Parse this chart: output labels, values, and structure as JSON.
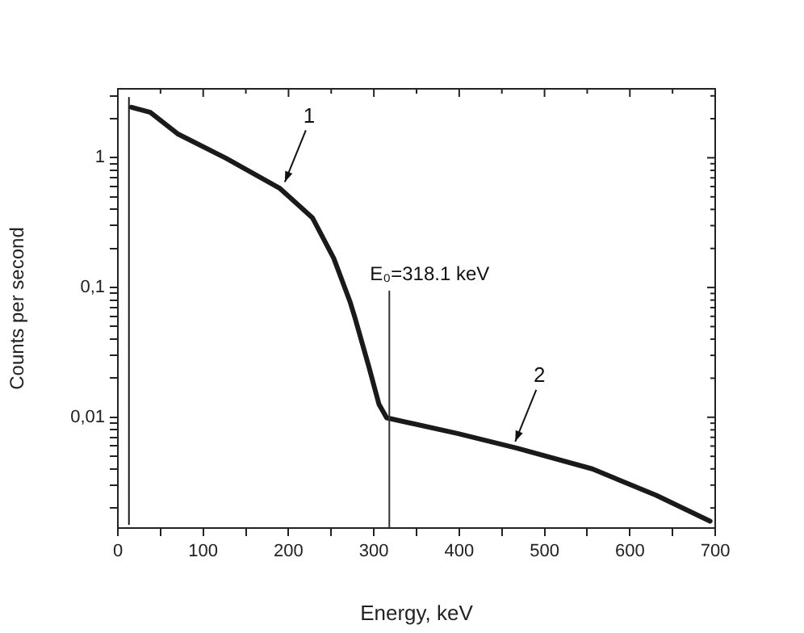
{
  "chart_data": {
    "type": "line",
    "xlabel": "Energy, keV",
    "ylabel": "Counts per second",
    "log": "y",
    "grid": false,
    "legend": false,
    "marker": "none",
    "line_style": "solid",
    "xlim": [
      0,
      700
    ],
    "ylim": [
      0.0014,
      3.4
    ],
    "xticks": [
      0,
      {
        "value": 50,
        "label": null
      },
      100,
      {
        "value": 150,
        "label": null
      },
      200,
      {
        "value": 250,
        "label": null
      },
      300,
      {
        "value": 350,
        "label": null
      },
      400,
      {
        "value": 450,
        "label": null
      },
      500,
      {
        "value": 550,
        "label": null
      },
      600,
      {
        "value": 650,
        "label": null
      },
      700
    ],
    "yticks": [
      {
        "value": 0.002,
        "label": null
      },
      {
        "value": 0.003,
        "label": null
      },
      {
        "value": 0.004,
        "label": null
      },
      {
        "value": 0.005,
        "label": null
      },
      {
        "value": 0.006,
        "label": null
      },
      {
        "value": 0.007,
        "label": null
      },
      {
        "value": 0.008,
        "label": null
      },
      {
        "value": 0.009,
        "label": null
      },
      {
        "value": 0.01,
        "label": "0,01"
      },
      {
        "value": 0.02,
        "label": null
      },
      {
        "value": 0.03,
        "label": null
      },
      {
        "value": 0.04,
        "label": null
      },
      {
        "value": 0.05,
        "label": null
      },
      {
        "value": 0.06,
        "label": null
      },
      {
        "value": 0.07,
        "label": null
      },
      {
        "value": 0.08,
        "label": null
      },
      {
        "value": 0.09,
        "label": null
      },
      {
        "value": 0.1,
        "label": "0,1"
      },
      {
        "value": 0.2,
        "label": null
      },
      {
        "value": 0.3,
        "label": null
      },
      {
        "value": 0.4,
        "label": null
      },
      {
        "value": 0.5,
        "label": null
      },
      {
        "value": 0.6,
        "label": null
      },
      {
        "value": 0.7,
        "label": null
      },
      {
        "value": 0.8,
        "label": null
      },
      {
        "value": 0.9,
        "label": null
      },
      {
        "value": 1,
        "label": "1"
      },
      {
        "value": 2,
        "label": null
      },
      {
        "value": 3,
        "label": null
      }
    ],
    "series": [
      {
        "color": "#1a1a1a",
        "x": [
          13,
          13,
          13,
          13
        ],
        "values": [
          0.0015,
          0.014,
          0.11,
          2.9
        ]
      },
      {
        "color": "#1a1a1a",
        "x": [
          16,
          38,
          70,
          127,
          190,
          228,
          253,
          272,
          278,
          294,
          306,
          315,
          398,
          467,
          556,
          631,
          694
        ],
        "values": [
          2.45,
          2.24,
          1.53,
          0.99,
          0.58,
          0.345,
          0.168,
          0.078,
          0.058,
          0.0247,
          0.0126,
          0.0099,
          0.0075,
          0.0058,
          0.004,
          0.0025,
          0.00158
        ]
      }
    ],
    "ref_lines": [
      {
        "axis": "x",
        "value": 318.1,
        "label": "E₀=318.1 keV",
        "color": "#333333"
      }
    ],
    "annotations": [
      {
        "text": "1",
        "x": 190,
        "y": 0.58
      },
      {
        "text": "2",
        "x": 460,
        "y": 0.0058
      }
    ]
  }
}
